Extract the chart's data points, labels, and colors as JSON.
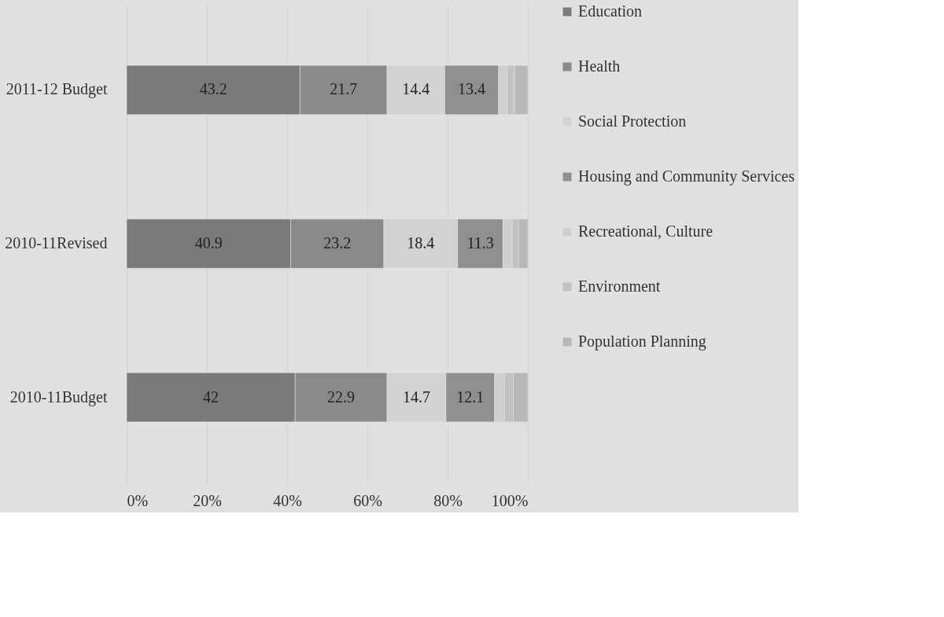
{
  "chart_data": {
    "type": "bar",
    "orientation": "horizontal",
    "stacked": true,
    "categories": [
      "2011-12 Budget",
      "2010-11Revised",
      "2010-11Budget"
    ],
    "series": [
      {
        "name": "Education",
        "color": "#7a7a7a",
        "values": [
          43.2,
          40.9,
          42
        ],
        "value_labels": [
          "43.2",
          "40.9",
          "42"
        ]
      },
      {
        "name": "Health",
        "color": "#8a8a8a",
        "values": [
          21.7,
          23.2,
          22.9
        ],
        "value_labels": [
          "21.7",
          "23.2",
          "22.9"
        ]
      },
      {
        "name": "Social Protection",
        "color": "#d2d2d2",
        "values": [
          14.4,
          18.4,
          14.7
        ],
        "value_labels": [
          "14.4",
          "18.4",
          "14.7"
        ]
      },
      {
        "name": "Housing and Community Services",
        "color": "#8f8f8f",
        "values": [
          13.4,
          11.3,
          12.1
        ],
        "value_labels": [
          "13.4",
          "11.3",
          "12.1"
        ]
      },
      {
        "name": "Recreational, Culture",
        "color": "#cfcfcf",
        "values": [
          2.2,
          2.3,
          2.5
        ]
      },
      {
        "name": "Environment",
        "color": "#c2c2c2",
        "values": [
          1.8,
          1.6,
          2.2
        ]
      },
      {
        "name": "Population Planning",
        "color": "#b8b8b8",
        "values": [
          3.3,
          2.3,
          3.6
        ]
      }
    ],
    "xlim": [
      0,
      100
    ],
    "xticks": [
      {
        "value": 0,
        "label": "0%"
      },
      {
        "value": 20,
        "label": "20%"
      },
      {
        "value": 40,
        "label": "40%"
      },
      {
        "value": 60,
        "label": "60%"
      },
      {
        "value": 80,
        "label": "80%"
      },
      {
        "value": 100,
        "label": "100%"
      }
    ],
    "grid": "x",
    "legend": "right"
  }
}
